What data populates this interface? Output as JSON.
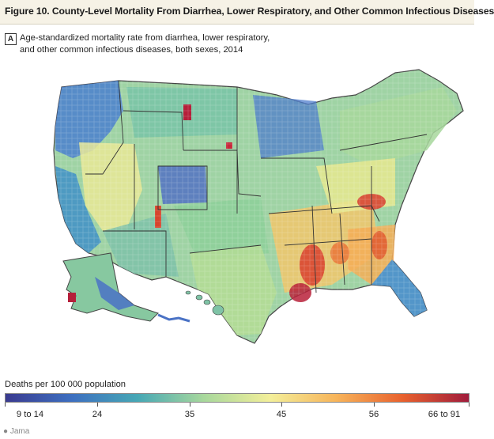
{
  "figure": {
    "title": "Figure 10. County-Level Mortality From Diarrhea, Lower Respiratory, and Other Common Infectious Diseases",
    "panel_label": "A",
    "subtitle_line1": "Age-standardized mortality rate from diarrhea, lower respiratory,",
    "subtitle_line2": "and other common infectious diseases, both sexes, 2014"
  },
  "legend": {
    "title": "Deaths per 100 000 population",
    "ticks": [
      "9 to 14",
      "24",
      "35",
      "45",
      "56",
      "66 to 91"
    ],
    "colors": [
      "#3a3a8f",
      "#3d6fc0",
      "#47a8b5",
      "#a8d89c",
      "#f3ef9a",
      "#f7b45a",
      "#e8612e",
      "#a01c3c"
    ]
  },
  "map": {
    "region": "United States (contiguous 48 states, Alaska, Hawaii)",
    "high_areas": [
      "Lower Mississippi Valley",
      "Southeast",
      "Appalachia"
    ],
    "low_areas": [
      "Pacific Northwest",
      "Upper Midwest",
      "Colorado Rockies",
      "Southern Florida"
    ]
  },
  "credit": {
    "text": "Jama"
  }
}
